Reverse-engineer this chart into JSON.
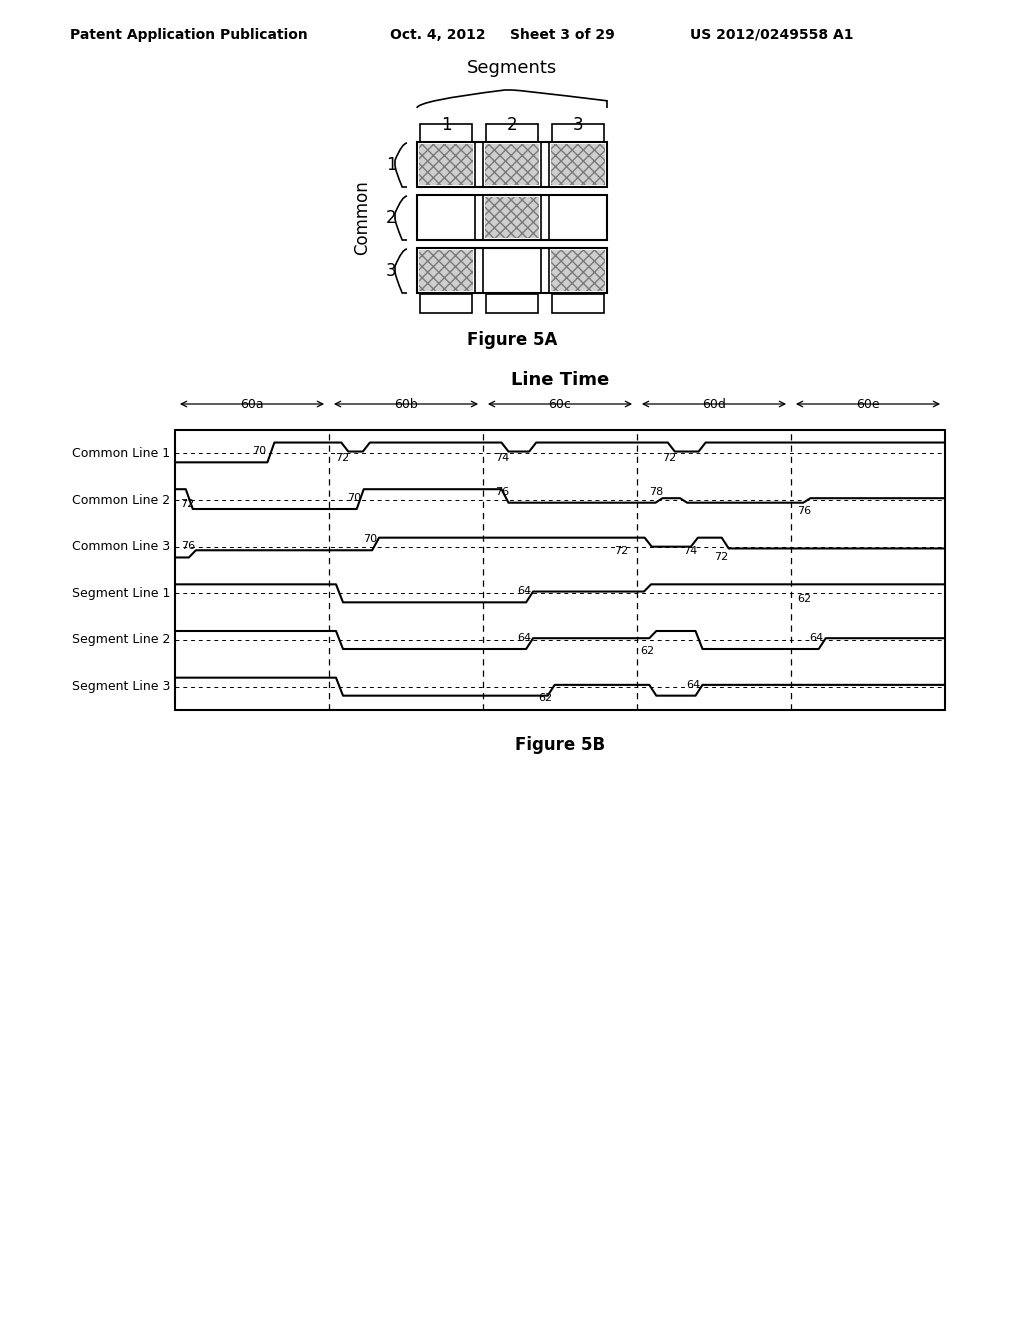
{
  "bg_color": "#ffffff",
  "header_text": "Patent Application Publication",
  "header_date": "Oct. 4, 2012",
  "header_sheet": "Sheet 3 of 29",
  "header_patent": "US 2012/0249558 A1",
  "fig5a_caption": "Figure 5A",
  "fig5b_title": "Line Time",
  "fig5b_caption": "Figure 5B",
  "period_labels": [
    "60a",
    "60b",
    "60c",
    "60d",
    "60e"
  ],
  "waveform_labels": [
    "Common Line 1",
    "Common Line 2",
    "Common Line 3",
    "Segment Line 1",
    "Segment Line 2",
    "Segment Line 3"
  ]
}
